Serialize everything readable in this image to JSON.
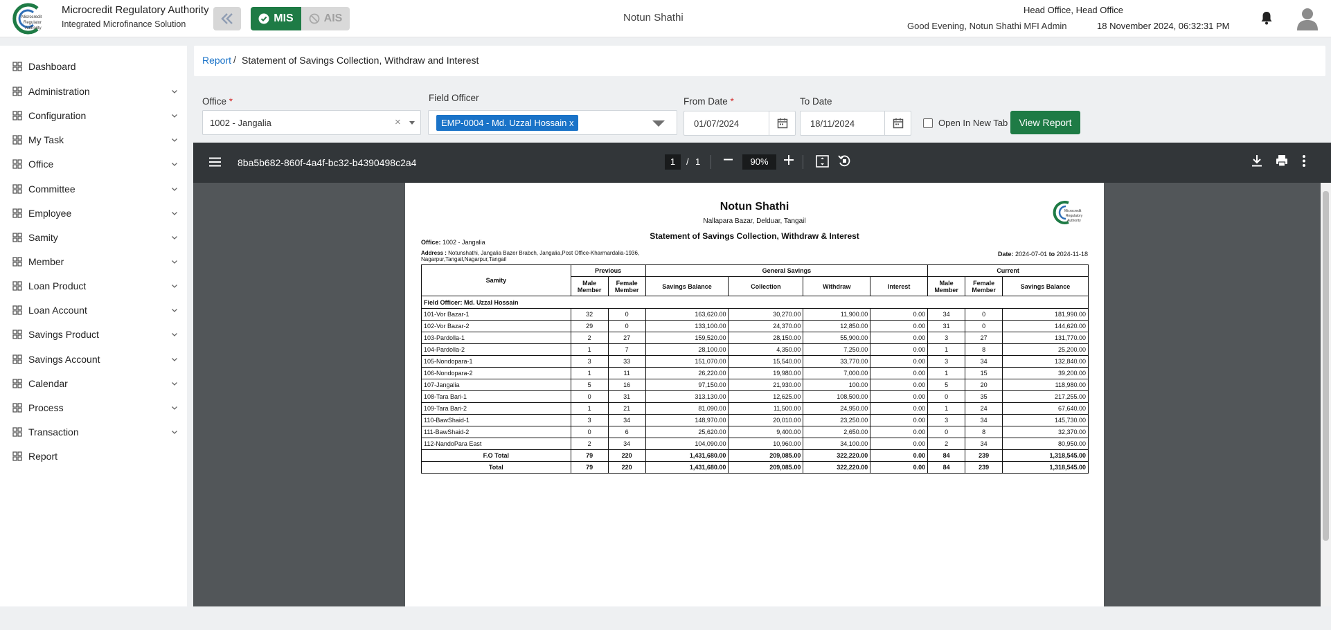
{
  "header": {
    "org_title": "Microcredit Regulatory Authority",
    "org_subtitle": "Integrated Microfinance Solution",
    "mis_label": "MIS",
    "ais_label": "AIS",
    "center_name": "Notun Shathi",
    "office_line": "Head Office, Head Office",
    "greeting": "Good Evening, Notun Shathi MFI Admin",
    "datetime": "18 November 2024, 06:32:31 PM",
    "accent_color": "#1e7b45"
  },
  "sidebar": {
    "items": [
      {
        "label": "Dashboard",
        "icon": "grid-icon",
        "expandable": false
      },
      {
        "label": "Administration",
        "icon": "user-admin-icon",
        "expandable": true
      },
      {
        "label": "Configuration",
        "icon": "sliders-icon",
        "expandable": true
      },
      {
        "label": "My Task",
        "icon": "task-circle-icon",
        "expandable": true
      },
      {
        "label": "Office",
        "icon": "building-icon",
        "expandable": true
      },
      {
        "label": "Committee",
        "icon": "committee-icon",
        "expandable": true
      },
      {
        "label": "Employee",
        "icon": "employee-icon",
        "expandable": true
      },
      {
        "label": "Samity",
        "icon": "group-icon",
        "expandable": true
      },
      {
        "label": "Member",
        "icon": "members-icon",
        "expandable": true
      },
      {
        "label": "Loan Product",
        "icon": "loan-product-icon",
        "expandable": true
      },
      {
        "label": "Loan Account",
        "icon": "loan-account-icon",
        "expandable": true
      },
      {
        "label": "Savings Product",
        "icon": "savings-product-icon",
        "expandable": true
      },
      {
        "label": "Savings Account",
        "icon": "savings-account-icon",
        "expandable": true
      },
      {
        "label": "Calendar",
        "icon": "calendar-icon",
        "expandable": true
      },
      {
        "label": "Process",
        "icon": "process-icon",
        "expandable": true
      },
      {
        "label": "Transaction",
        "icon": "transaction-icon",
        "expandable": true
      },
      {
        "label": "Report",
        "icon": "report-icon",
        "expandable": false
      }
    ]
  },
  "breadcrumb": {
    "root": "Report",
    "separator": "/",
    "current": "Statement of Savings Collection, Withdraw and Interest"
  },
  "filters": {
    "office_label": "Office",
    "office_value": "1002 - Jangalia",
    "field_officer_label": "Field Officer",
    "field_officer_tag": "EMP-0004 - Md. Uzzal Hossain",
    "tag_remove": "x",
    "from_date_label": "From Date",
    "from_date_value": "01/07/2024",
    "to_date_label": "To Date",
    "to_date_value": "18/11/2024",
    "required_mark": "*",
    "clear_mark": "×",
    "open_new_tab_label": "Open In New Tab",
    "view_report_label": "View Report"
  },
  "pdf_viewer": {
    "file_name": "8ba5b682-860f-4a4f-bc32-b4390498c2a4",
    "current_page": "1",
    "page_sep": "/",
    "total_pages": "1",
    "zoom": "90%"
  },
  "report": {
    "org_name": "Notun Shathi",
    "org_address": "Nallapara Bazar, Delduar, Tangail",
    "title": "Statement of Savings Collection, Withdraw & Interest",
    "office_label": "Office:",
    "office_value": "1002 - Jangalia",
    "address_label": "Address :",
    "address_value": "Notunshathi, Jangalia Bazer Brabch, Jangalia,Post Office-Kharmardalia-1936, Nagarpur,Tangail,Nagarpur,Tangail",
    "date_label": "Date:",
    "date_from": "2024-07-01",
    "date_to_word": "to",
    "date_to": "2024-11-18",
    "logo_text": "Microcredit Regulatory Authority",
    "columns": {
      "samity": "Samity",
      "previous": "Previous",
      "general_savings": "General Savings",
      "current": "Current",
      "male_member": "Male Member",
      "female_member": "Female Member",
      "savings_balance": "Savings Balance",
      "collection": "Collection",
      "withdraw": "Withdraw",
      "interest": "Interest"
    },
    "field_officer_row": "Field Officer: Md. Uzzal Hossain",
    "rows": [
      [
        "101-Vor Bazar-1",
        "32",
        "0",
        "163,620.00",
        "30,270.00",
        "11,900.00",
        "0.00",
        "34",
        "0",
        "181,990.00"
      ],
      [
        "102-Vor Bazar-2",
        "29",
        "0",
        "133,100.00",
        "24,370.00",
        "12,850.00",
        "0.00",
        "31",
        "0",
        "144,620.00"
      ],
      [
        "103-Pardolla-1",
        "2",
        "27",
        "159,520.00",
        "28,150.00",
        "55,900.00",
        "0.00",
        "3",
        "27",
        "131,770.00"
      ],
      [
        "104-Pardolla-2",
        "1",
        "7",
        "28,100.00",
        "4,350.00",
        "7,250.00",
        "0.00",
        "1",
        "8",
        "25,200.00"
      ],
      [
        "105-Nondopara-1",
        "3",
        "33",
        "151,070.00",
        "15,540.00",
        "33,770.00",
        "0.00",
        "3",
        "34",
        "132,840.00"
      ],
      [
        "106-Nondopara-2",
        "1",
        "11",
        "26,220.00",
        "19,980.00",
        "7,000.00",
        "0.00",
        "1",
        "15",
        "39,200.00"
      ],
      [
        "107-Jangalia",
        "5",
        "16",
        "97,150.00",
        "21,930.00",
        "100.00",
        "0.00",
        "5",
        "20",
        "118,980.00"
      ],
      [
        "108-Tara Bari-1",
        "0",
        "31",
        "313,130.00",
        "12,625.00",
        "108,500.00",
        "0.00",
        "0",
        "35",
        "217,255.00"
      ],
      [
        "109-Tara Bari-2",
        "1",
        "21",
        "81,090.00",
        "11,500.00",
        "24,950.00",
        "0.00",
        "1",
        "24",
        "67,640.00"
      ],
      [
        "110-BawShaid-1",
        "3",
        "34",
        "148,970.00",
        "20,010.00",
        "23,250.00",
        "0.00",
        "3",
        "34",
        "145,730.00"
      ],
      [
        "111-BawShaid-2",
        "0",
        "6",
        "25,620.00",
        "9,400.00",
        "2,650.00",
        "0.00",
        "0",
        "8",
        "32,370.00"
      ],
      [
        "112-NandoPara East",
        "2",
        "34",
        "104,090.00",
        "10,960.00",
        "34,100.00",
        "0.00",
        "2",
        "34",
        "80,950.00"
      ]
    ],
    "fo_total": [
      "F.O Total",
      "79",
      "220",
      "1,431,680.00",
      "209,085.00",
      "322,220.00",
      "0.00",
      "84",
      "239",
      "1,318,545.00"
    ],
    "total": [
      "Total",
      "79",
      "220",
      "1,431,680.00",
      "209,085.00",
      "322,220.00",
      "0.00",
      "84",
      "239",
      "1,318,545.00"
    ]
  }
}
